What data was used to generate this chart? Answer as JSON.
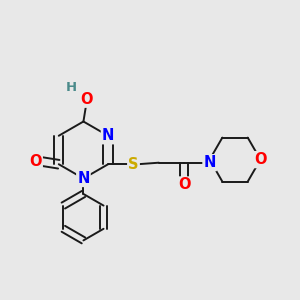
{
  "bg_color": "#e8e8e8",
  "bond_color": "#1a1a1a",
  "colors": {
    "N": "#0000ff",
    "O": "#ff0000",
    "S": "#ccaa00",
    "H": "#4a8a8a",
    "C": "#1a1a1a"
  }
}
